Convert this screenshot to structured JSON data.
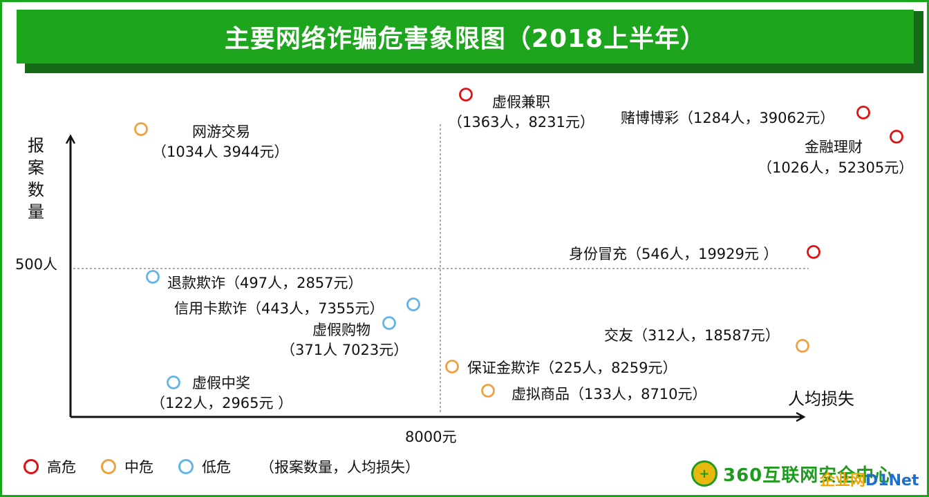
{
  "title": "主要网络诈骗危害象限图（2018上半年）",
  "colors": {
    "high": "#e01010",
    "medium": "#f0a040",
    "low": "#62b4e8",
    "title_bg": "#1ea51e",
    "frame": "#1aa61a"
  },
  "chart_data": {
    "type": "scatter",
    "title": "主要网络诈骗危害象限图（2018上半年）",
    "xlabel": "人均损失",
    "ylabel": "报案数量",
    "x_reference": 8000,
    "x_reference_label": "8000元",
    "y_reference": 500,
    "y_reference_label": "500人",
    "grid": false,
    "legend_position": "bottom-left",
    "series": [
      {
        "name": "高危",
        "key": "high",
        "color": "#e01010"
      },
      {
        "name": "中危",
        "key": "medium",
        "color": "#f0a040"
      },
      {
        "name": "低危",
        "key": "low",
        "color": "#62b4e8"
      }
    ],
    "points": [
      {
        "name": "虚假兼职",
        "cases": 1363,
        "loss": 8231,
        "risk": "high",
        "label_lines": [
          "虚假兼职",
          "（1363人，8231元）"
        ]
      },
      {
        "name": "赌博博彩",
        "cases": 1284,
        "loss": 39062,
        "risk": "high",
        "label_lines": [
          "赌博博彩（1284人，39062元）"
        ]
      },
      {
        "name": "金融理财",
        "cases": 1026,
        "loss": 52305,
        "risk": "high",
        "label_lines": [
          "金融理财",
          "（1026人，52305元）"
        ]
      },
      {
        "name": "身份冒充",
        "cases": 546,
        "loss": 19929,
        "risk": "high",
        "label_lines": [
          "身份冒充（546人，19929元 ）"
        ]
      },
      {
        "name": "网游交易",
        "cases": 1034,
        "loss": 3944,
        "risk": "medium",
        "label_lines": [
          "网游交易",
          "（1034人  3944元）"
        ]
      },
      {
        "name": "交友",
        "cases": 312,
        "loss": 18587,
        "risk": "medium",
        "label_lines": [
          "交友（312人，18587元）"
        ]
      },
      {
        "name": "保证金欺诈",
        "cases": 225,
        "loss": 8259,
        "risk": "medium",
        "label_lines": [
          "保证金欺诈（225人，8259元）"
        ]
      },
      {
        "name": "虚拟商品",
        "cases": 133,
        "loss": 8710,
        "risk": "medium",
        "label_lines": [
          "虚拟商品（133人，8710元）"
        ]
      },
      {
        "name": "退款欺诈",
        "cases": 497,
        "loss": 2857,
        "risk": "low",
        "label_lines": [
          "退款欺诈（497人，2857元）"
        ]
      },
      {
        "name": "信用卡欺诈",
        "cases": 443,
        "loss": 7355,
        "risk": "low",
        "label_lines": [
          "信用卡欺诈（443人，7355元）"
        ]
      },
      {
        "name": "虚假购物",
        "cases": 371,
        "loss": 7023,
        "risk": "low",
        "label_lines": [
          "虚假购物",
          "（371人 7023元）"
        ]
      },
      {
        "name": "虚假中奖",
        "cases": 122,
        "loss": 2965,
        "risk": "low",
        "label_lines": [
          "虚假中奖",
          "（122人，2965元 ）"
        ]
      }
    ]
  },
  "legend": {
    "items": [
      {
        "label": "高危",
        "key": "high"
      },
      {
        "label": "中危",
        "key": "medium"
      },
      {
        "label": "低危",
        "key": "low"
      }
    ],
    "note": "（报案数量，人均损失）"
  },
  "footer": {
    "logo_text": "360互联网安全中心",
    "watermark_a": "企业网",
    "watermark_b": "D1Net"
  }
}
